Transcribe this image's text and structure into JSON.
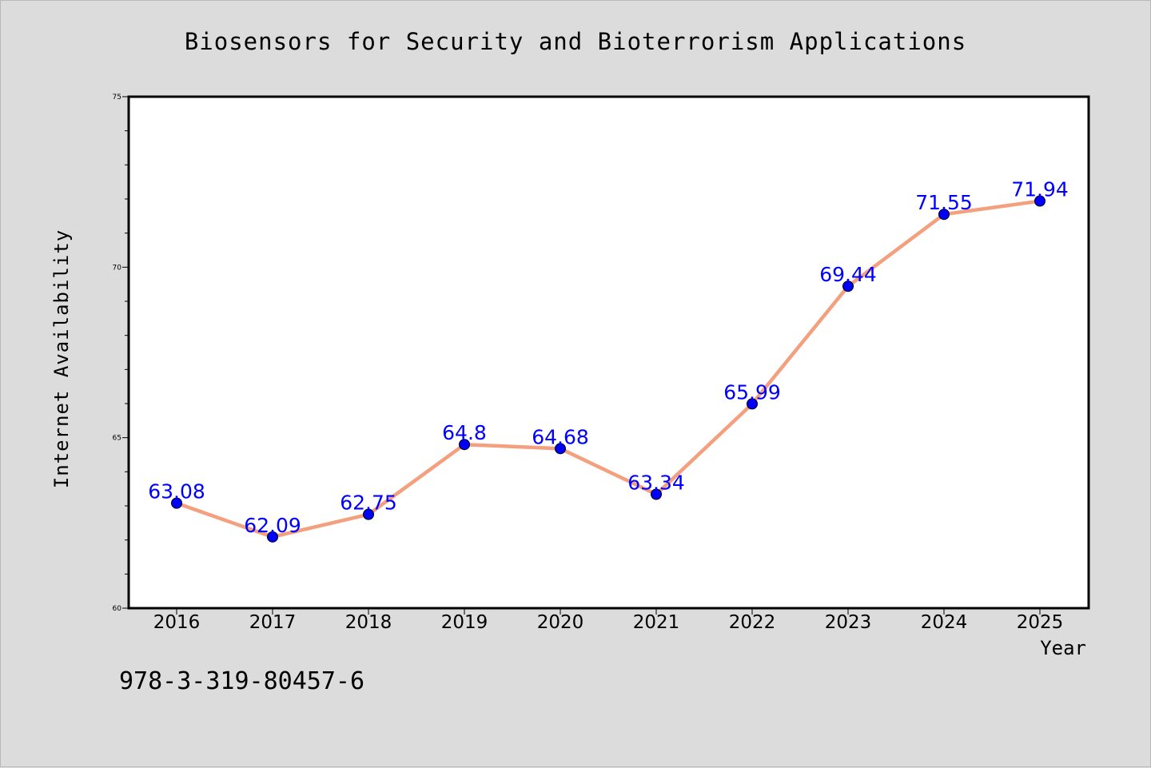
{
  "page": {
    "isbn": "978-3-319-80457-6"
  },
  "chart_data": {
    "type": "line",
    "title": "Biosensors for Security and Bioterrorism Applications",
    "xlabel": "Year",
    "ylabel": "Internet Availability",
    "categories": [
      "2016",
      "2017",
      "2018",
      "2019",
      "2020",
      "2021",
      "2022",
      "2023",
      "2024",
      "2025"
    ],
    "series": [
      {
        "values": [
          63.08,
          62.09,
          62.75,
          64.8,
          64.68,
          63.34,
          65.99,
          69.44,
          71.55,
          71.94
        ],
        "data_labels": [
          "63.08",
          "62.09",
          "62.75",
          "64.8",
          "64.68",
          "63.34",
          "65.99",
          "69.44",
          "71.55",
          "71.94"
        ]
      }
    ],
    "ylim": [
      60,
      75
    ],
    "yticks": [
      60,
      65,
      70,
      75
    ],
    "ytick_labels": [
      "60",
      "65",
      "70",
      "75"
    ],
    "grid": false,
    "colors": {
      "line": "#f4a07e",
      "marker": "#0000ff",
      "data_label": "#0000ff",
      "background": "#dcdcdc",
      "plot_area": "#ffffff"
    }
  }
}
